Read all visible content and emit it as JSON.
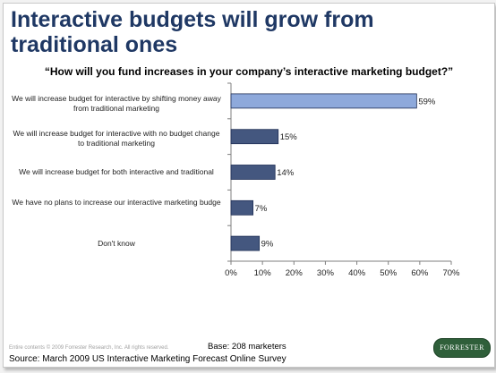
{
  "title": "Interactive budgets will grow from traditional ones",
  "chart_data": {
    "type": "bar",
    "orientation": "horizontal",
    "title": "“How will you fund increases in your company’s interactive marketing budget?”",
    "categories": [
      "We will increase budget for interactive by shifting money away from traditional marketing",
      "We will increase budget for interactive with no budget change to traditional marketing",
      "We will increase budget for both interactive and traditional",
      "We have no plans to increase our interactive marketing budge",
      "Don't know"
    ],
    "values": [
      59,
      15,
      14,
      7,
      9
    ],
    "data_labels": [
      "59%",
      "15%",
      "14%",
      "7%",
      "9%"
    ],
    "xlim": [
      0,
      70
    ],
    "xticks": [
      0,
      10,
      20,
      30,
      40,
      50,
      60,
      70
    ],
    "xtick_labels": [
      "0%",
      "10%",
      "20%",
      "30%",
      "40%",
      "50%",
      "60%",
      "70%"
    ],
    "grid": false,
    "colors": {
      "highlight": "#8ea9db",
      "bar": "#44577f",
      "bar_edge": "#1f2f55"
    },
    "highlight_index": 0
  },
  "footer": {
    "base": "Base: 208 marketers",
    "copyright": "Entire contents © 2009  Forrester Research, Inc. All rights reserved.",
    "source": "Source: March 2009 US Interactive Marketing Forecast Online Survey",
    "logo": "FORRESTER"
  }
}
